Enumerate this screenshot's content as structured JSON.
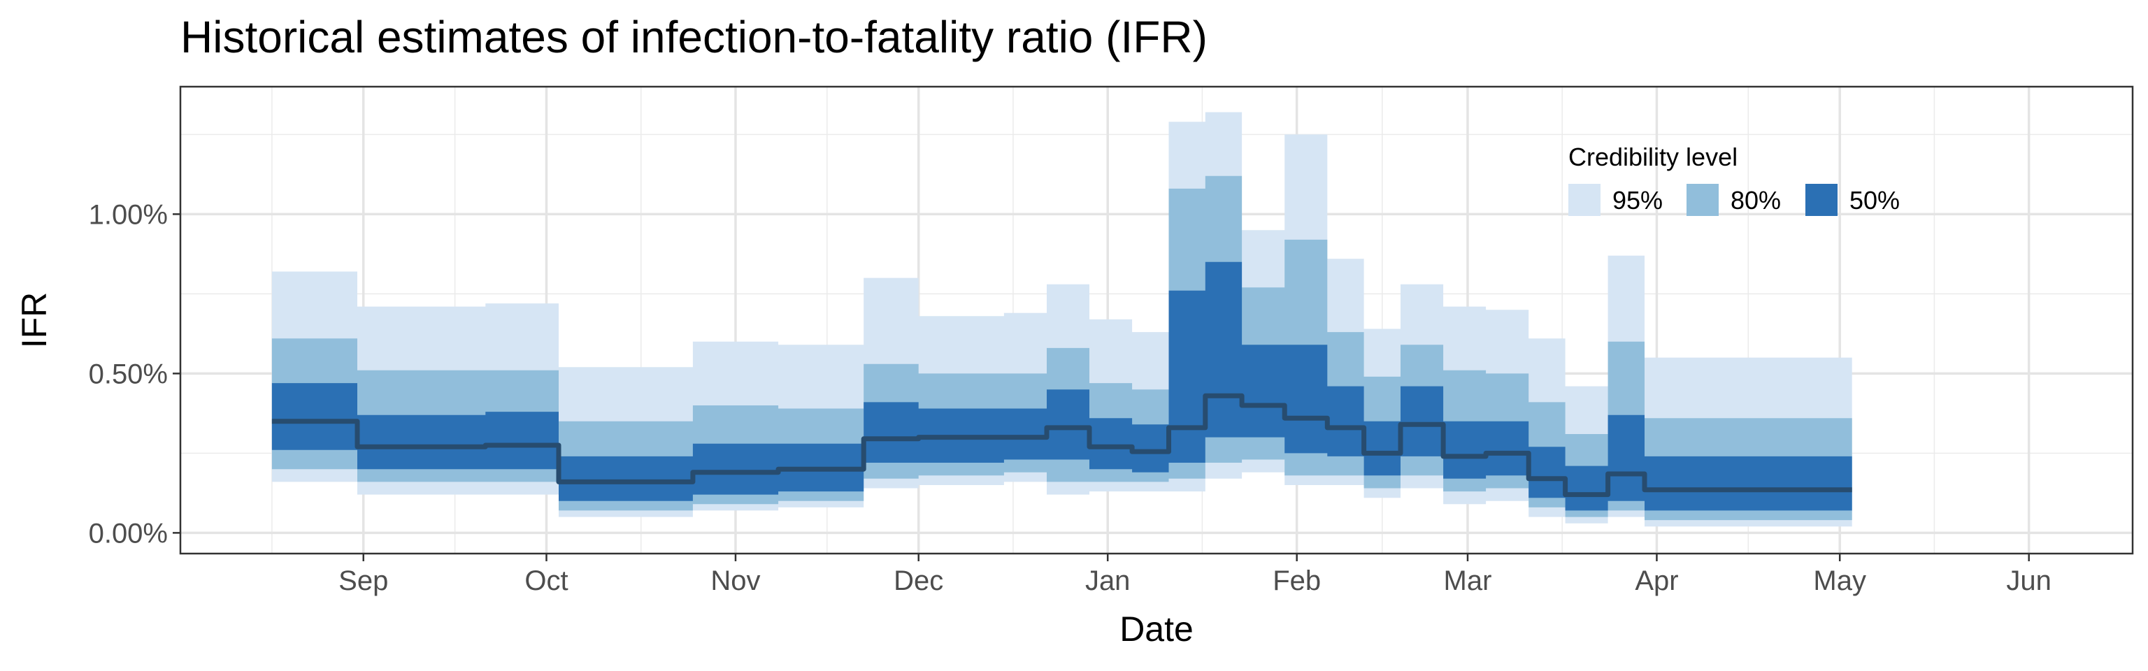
{
  "chart_data": {
    "type": "area",
    "title": "Historical estimates of infection-to-fatality ratio (IFR)",
    "xlabel": "Date",
    "ylabel": "IFR",
    "x_ticks": [
      "Sep",
      "Oct",
      "Nov",
      "Dec",
      "Jan",
      "Feb",
      "Mar",
      "Apr",
      "May",
      "Jun"
    ],
    "x_tick_dates": [
      "2020-09-01",
      "2020-10-01",
      "2020-11-01",
      "2020-12-01",
      "2021-01-01",
      "2021-02-01",
      "2021-03-01",
      "2021-04-01",
      "2021-05-01",
      "2021-06-01"
    ],
    "x_range": [
      "2020-08-02",
      "2021-06-17"
    ],
    "y_ticks": [
      "0.00%",
      "0.50%",
      "1.00%"
    ],
    "y_tick_values": [
      0.0,
      0.5,
      1.0
    ],
    "ylim": [
      -0.065,
      1.4
    ],
    "grid": true,
    "legend": {
      "title": "Credibility level",
      "position": "top-right",
      "entries": [
        {
          "label": "95%",
          "color": "#d6e5f4"
        },
        {
          "label": "80%",
          "color": "#91bedb"
        },
        {
          "label": "50%",
          "color": "#2b70b4"
        }
      ]
    },
    "median_color": "#274c6f",
    "series": [
      {
        "start": "2020-08-17",
        "end": "2020-08-30",
        "median": 0.35,
        "lo50": 0.26,
        "hi50": 0.47,
        "lo80": 0.2,
        "hi80": 0.61,
        "lo95": 0.16,
        "hi95": 0.82
      },
      {
        "start": "2020-08-31",
        "end": "2020-09-20",
        "median": 0.27,
        "lo50": 0.2,
        "hi50": 0.37,
        "lo80": 0.16,
        "hi80": 0.51,
        "lo95": 0.12,
        "hi95": 0.71
      },
      {
        "start": "2020-09-21",
        "end": "2020-10-02",
        "median": 0.275,
        "lo50": 0.2,
        "hi50": 0.38,
        "lo80": 0.16,
        "hi80": 0.51,
        "lo95": 0.12,
        "hi95": 0.72
      },
      {
        "start": "2020-10-03",
        "end": "2020-10-24",
        "median": 0.16,
        "lo50": 0.1,
        "hi50": 0.24,
        "lo80": 0.07,
        "hi80": 0.35,
        "lo95": 0.05,
        "hi95": 0.52
      },
      {
        "start": "2020-10-25",
        "end": "2020-11-07",
        "median": 0.19,
        "lo50": 0.12,
        "hi50": 0.28,
        "lo80": 0.09,
        "hi80": 0.4,
        "lo95": 0.07,
        "hi95": 0.6
      },
      {
        "start": "2020-11-08",
        "end": "2020-11-21",
        "median": 0.2,
        "lo50": 0.13,
        "hi50": 0.28,
        "lo80": 0.1,
        "hi80": 0.39,
        "lo95": 0.08,
        "hi95": 0.59
      },
      {
        "start": "2020-11-22",
        "end": "2020-11-30",
        "median": 0.295,
        "lo50": 0.22,
        "hi50": 0.41,
        "lo80": 0.17,
        "hi80": 0.53,
        "lo95": 0.14,
        "hi95": 0.8
      },
      {
        "start": "2020-12-01",
        "end": "2020-12-14",
        "median": 0.3,
        "lo50": 0.22,
        "hi50": 0.39,
        "lo80": 0.18,
        "hi80": 0.5,
        "lo95": 0.15,
        "hi95": 0.68
      },
      {
        "start": "2020-12-15",
        "end": "2020-12-21",
        "median": 0.3,
        "lo50": 0.23,
        "hi50": 0.39,
        "lo80": 0.19,
        "hi80": 0.5,
        "lo95": 0.16,
        "hi95": 0.69
      },
      {
        "start": "2020-12-22",
        "end": "2020-12-28",
        "median": 0.33,
        "lo50": 0.23,
        "hi50": 0.45,
        "lo80": 0.16,
        "hi80": 0.58,
        "lo95": 0.12,
        "hi95": 0.78
      },
      {
        "start": "2020-12-29",
        "end": "2021-01-04",
        "median": 0.27,
        "lo50": 0.2,
        "hi50": 0.36,
        "lo80": 0.16,
        "hi80": 0.47,
        "lo95": 0.13,
        "hi95": 0.67
      },
      {
        "start": "2021-01-05",
        "end": "2021-01-10",
        "median": 0.255,
        "lo50": 0.19,
        "hi50": 0.34,
        "lo80": 0.16,
        "hi80": 0.45,
        "lo95": 0.13,
        "hi95": 0.63
      },
      {
        "start": "2021-01-11",
        "end": "2021-01-16",
        "median": 0.33,
        "lo50": 0.22,
        "hi50": 0.76,
        "lo80": 0.17,
        "hi80": 1.08,
        "lo95": 0.13,
        "hi95": 1.29
      },
      {
        "start": "2021-01-17",
        "end": "2021-01-22",
        "median": 0.43,
        "lo50": 0.3,
        "hi50": 0.85,
        "lo80": 0.22,
        "hi80": 1.12,
        "lo95": 0.17,
        "hi95": 1.32
      },
      {
        "start": "2021-01-23",
        "end": "2021-01-29",
        "median": 0.4,
        "lo50": 0.3,
        "hi50": 0.59,
        "lo80": 0.23,
        "hi80": 0.77,
        "lo95": 0.19,
        "hi95": 0.95
      },
      {
        "start": "2021-01-30",
        "end": "2021-02-05",
        "median": 0.36,
        "lo50": 0.25,
        "hi50": 0.59,
        "lo80": 0.18,
        "hi80": 0.92,
        "lo95": 0.15,
        "hi95": 1.25
      },
      {
        "start": "2021-02-06",
        "end": "2021-02-11",
        "median": 0.33,
        "lo50": 0.24,
        "hi50": 0.46,
        "lo80": 0.18,
        "hi80": 0.63,
        "lo95": 0.15,
        "hi95": 0.86
      },
      {
        "start": "2021-02-12",
        "end": "2021-02-17",
        "median": 0.25,
        "lo50": 0.18,
        "hi50": 0.35,
        "lo80": 0.14,
        "hi80": 0.49,
        "lo95": 0.11,
        "hi95": 0.64
      },
      {
        "start": "2021-02-18",
        "end": "2021-02-24",
        "median": 0.34,
        "lo50": 0.24,
        "hi50": 0.46,
        "lo80": 0.18,
        "hi80": 0.59,
        "lo95": 0.14,
        "hi95": 0.78
      },
      {
        "start": "2021-02-25",
        "end": "2021-03-03",
        "median": 0.24,
        "lo50": 0.17,
        "hi50": 0.35,
        "lo80": 0.13,
        "hi80": 0.51,
        "lo95": 0.09,
        "hi95": 0.71
      },
      {
        "start": "2021-03-04",
        "end": "2021-03-10",
        "median": 0.25,
        "lo50": 0.18,
        "hi50": 0.35,
        "lo80": 0.14,
        "hi80": 0.5,
        "lo95": 0.1,
        "hi95": 0.7
      },
      {
        "start": "2021-03-11",
        "end": "2021-03-16",
        "median": 0.17,
        "lo50": 0.11,
        "hi50": 0.27,
        "lo80": 0.08,
        "hi80": 0.41,
        "lo95": 0.05,
        "hi95": 0.61
      },
      {
        "start": "2021-03-17",
        "end": "2021-03-23",
        "median": 0.12,
        "lo50": 0.07,
        "hi50": 0.21,
        "lo80": 0.05,
        "hi80": 0.31,
        "lo95": 0.03,
        "hi95": 0.46
      },
      {
        "start": "2021-03-24",
        "end": "2021-03-29",
        "median": 0.185,
        "lo50": 0.1,
        "hi50": 0.37,
        "lo80": 0.07,
        "hi80": 0.6,
        "lo95": 0.05,
        "hi95": 0.87
      },
      {
        "start": "2021-03-30",
        "end": "2021-05-02",
        "median": 0.135,
        "lo50": 0.07,
        "hi50": 0.24,
        "lo80": 0.04,
        "hi80": 0.36,
        "lo95": 0.02,
        "hi95": 0.55
      }
    ]
  }
}
